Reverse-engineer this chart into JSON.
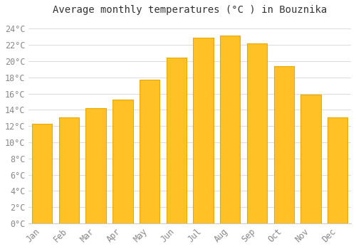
{
  "months": [
    "Jan",
    "Feb",
    "Mar",
    "Apr",
    "May",
    "Jun",
    "Jul",
    "Aug",
    "Sep",
    "Oct",
    "Nov",
    "Dec"
  ],
  "temperatures": [
    12.3,
    13.1,
    14.2,
    15.3,
    17.7,
    20.4,
    22.9,
    23.2,
    22.2,
    19.4,
    15.9,
    13.1
  ],
  "bar_color": "#FFC125",
  "bar_edge_color": "#E8A800",
  "title": "Average monthly temperatures (°C ) in Bouznika",
  "ylim": [
    0,
    25
  ],
  "ytick_step": 2,
  "background_color": "#ffffff",
  "plot_bg_color": "#ffffff",
  "grid_color": "#dddddd",
  "title_fontsize": 10,
  "tick_fontsize": 8.5,
  "font_family": "monospace",
  "tick_color": "#888888"
}
